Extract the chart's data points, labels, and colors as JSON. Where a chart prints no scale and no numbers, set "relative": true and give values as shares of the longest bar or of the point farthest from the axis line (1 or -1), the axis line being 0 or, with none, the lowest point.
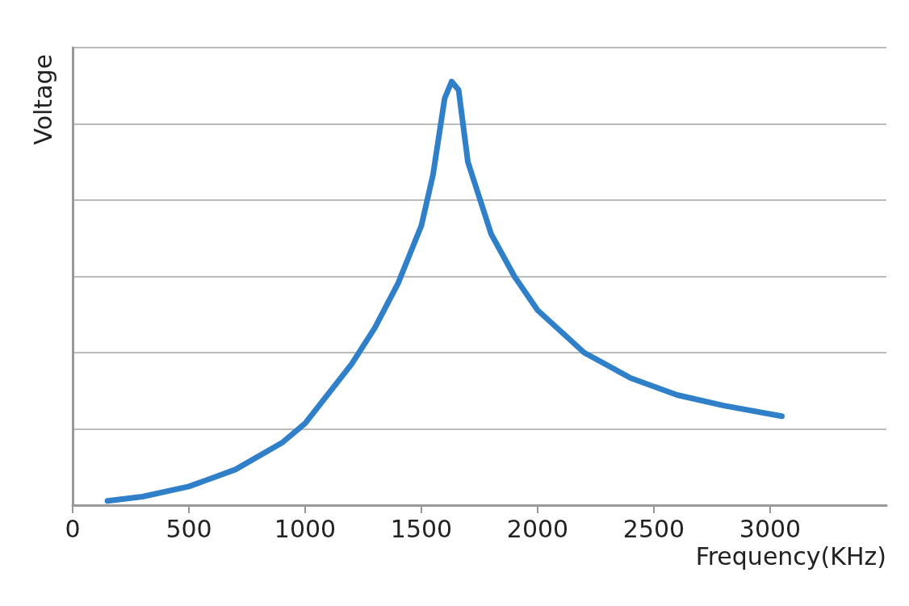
{
  "chart_data": {
    "type": "line",
    "xlabel": "Frequency(KHz)",
    "ylabel": "Voltage",
    "relative": true,
    "grid": "y",
    "marker": "none",
    "line_style": "solid",
    "xlim": [
      0,
      3500
    ],
    "xticks": [
      0,
      500,
      1000,
      1500,
      2000,
      2500,
      3000
    ],
    "series": [
      {
        "color": "#2f80c8",
        "x": [
          150,
          300,
          500,
          700,
          900,
          1000,
          1200,
          1300,
          1400,
          1500,
          1550,
          1600,
          1630,
          1660,
          1700,
          1800,
          1900,
          2000,
          2200,
          2400,
          2600,
          2800,
          3050
        ],
        "values": [
          0.01,
          0.02,
          0.044,
          0.084,
          0.147,
          0.193,
          0.333,
          0.419,
          0.524,
          0.66,
          0.78,
          0.96,
          1.0,
          0.98,
          0.81,
          0.64,
          0.54,
          0.46,
          0.36,
          0.3,
          0.26,
          0.235,
          0.21
        ]
      }
    ]
  }
}
